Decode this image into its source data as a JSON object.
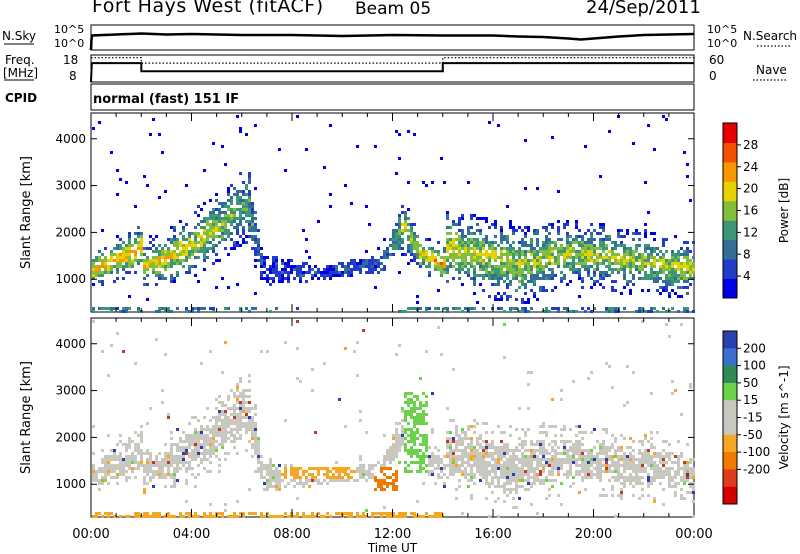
{
  "header": {
    "station": "Fort Hays West (fitACF)",
    "beam": "Beam 05",
    "date": "24/Sep/2011"
  },
  "aux": {
    "nsky_label": "N.Sky",
    "nsearch_label": "N.Search",
    "freq_label": "Freq.",
    "freq_unit": "[MHz]",
    "nave_label": "Nave",
    "cpid_label": "CPID",
    "cpid_value": "normal (fast) 151 IF",
    "noise_ticks": [
      "10^5",
      "10^0"
    ],
    "freq_ticks": [
      "18",
      "8"
    ],
    "nave_ticks": [
      "60",
      "0"
    ]
  },
  "chart_data": [
    {
      "type": "line",
      "panel": "noise",
      "series": [
        {
          "name": "N.Sky",
          "x": [
            0,
            0.02,
            0.04,
            1,
            2,
            3,
            4,
            6,
            8,
            10,
            12,
            14,
            16,
            17,
            18,
            19,
            19.5,
            20,
            21,
            22,
            23,
            24
          ],
          "y": [
            0,
            2.2,
            2.9,
            3.1,
            3.3,
            3.1,
            3.2,
            3.0,
            3.0,
            2.8,
            3.0,
            2.9,
            2.9,
            2.7,
            2.6,
            2.3,
            2.1,
            2.3,
            2.7,
            3.0,
            3.1,
            3.2
          ]
        }
      ],
      "ylim": [
        0,
        5
      ],
      "y_tick_labels": [
        "10^0",
        "10^5"
      ]
    },
    {
      "type": "line",
      "panel": "frequency",
      "series": [
        {
          "name": "Freq.",
          "x": [
            0,
            0.03,
            2.0,
            2.0,
            14.0,
            14.0,
            24
          ],
          "y": [
            8,
            15,
            15,
            12,
            12,
            15,
            15
          ]
        },
        {
          "name": "Nave",
          "x": [
            0,
            2.0,
            2.0,
            14.0,
            14.0,
            24
          ],
          "y": [
            17,
            17,
            15,
            15,
            17,
            17
          ]
        }
      ],
      "ylim": [
        8,
        18
      ],
      "y2lim": [
        0,
        60
      ]
    },
    {
      "type": "heatmap",
      "panel": "power",
      "ylabel": "Slant Range [km]",
      "ylim": [
        300,
        4550
      ],
      "y_ticks": [
        1000,
        2000,
        3000,
        4000
      ],
      "xlim": [
        0,
        24
      ],
      "colorbar": {
        "label": "Power [dB]",
        "ticks": [
          4,
          8,
          12,
          16,
          20,
          24,
          28
        ],
        "range": [
          0,
          32
        ]
      },
      "bands": [
        {
          "t": 0,
          "center": 1250,
          "width": 450,
          "level": 0.72
        },
        {
          "t": 1,
          "center": 1450,
          "width": 550,
          "level": 0.7
        },
        {
          "t": 1.95,
          "center": 1700,
          "width": 650,
          "level": 0.7
        },
        {
          "t": 2.05,
          "center": 1300,
          "width": 550,
          "level": 0.7
        },
        {
          "t": 4,
          "center": 1750,
          "width": 800,
          "level": 0.62
        },
        {
          "t": 6.2,
          "center": 2650,
          "width": 900,
          "level": 0.45
        },
        {
          "t": 6.8,
          "center": 1250,
          "width": 600,
          "level": 0.12
        },
        {
          "t": 9,
          "center": 1150,
          "width": 250,
          "level": 0.14
        },
        {
          "t": 11.5,
          "center": 1350,
          "width": 350,
          "level": 0.2
        },
        {
          "t": 12.4,
          "center": 2200,
          "width": 700,
          "level": 0.55
        },
        {
          "t": 13,
          "center": 1600,
          "width": 500,
          "level": 0.6
        },
        {
          "t": 14,
          "center": 1350,
          "width": 450,
          "level": 0.82
        },
        {
          "t": 14.1,
          "center": 1700,
          "width": 900,
          "level": 0.6
        },
        {
          "t": 17,
          "center": 1350,
          "width": 1000,
          "level": 0.55
        },
        {
          "t": 19,
          "center": 1600,
          "width": 800,
          "level": 0.55
        },
        {
          "t": 21,
          "center": 1450,
          "width": 800,
          "level": 0.55
        },
        {
          "t": 24,
          "center": 1250,
          "width": 700,
          "level": 0.6
        }
      ]
    },
    {
      "type": "heatmap",
      "panel": "velocity",
      "ylabel": "Slant Range [km]",
      "xlabel": "Time UT",
      "ylim": [
        300,
        4550
      ],
      "y_ticks": [
        1000,
        2000,
        3000,
        4000
      ],
      "xlim": [
        0,
        24
      ],
      "x_tick_labels": [
        "00:00",
        "04:00",
        "08:00",
        "12:00",
        "16:00",
        "20:00",
        "00:00"
      ],
      "x_ticks": [
        0,
        4,
        8,
        12,
        16,
        20,
        24
      ],
      "colorbar": {
        "label": "Velocity [m s^-1]",
        "ticks": [
          200,
          100,
          50,
          15,
          -15,
          -50,
          -100,
          -200
        ]
      },
      "dominant": "-15 to 15 (grey)",
      "features": [
        {
          "t_start": 7.5,
          "t_end": 10.5,
          "range": [
            1150,
            1400
          ],
          "velocity": -50
        },
        {
          "t_start": 11.2,
          "t_end": 12.2,
          "range": [
            900,
            1400
          ],
          "velocity": -100
        },
        {
          "t_start": 12.4,
          "t_end": 13.4,
          "range": [
            1300,
            3000
          ],
          "velocity": 50
        },
        {
          "t_start": 0,
          "t_end": 14,
          "range": [
            320,
            420
          ],
          "velocity": -50
        }
      ]
    }
  ]
}
